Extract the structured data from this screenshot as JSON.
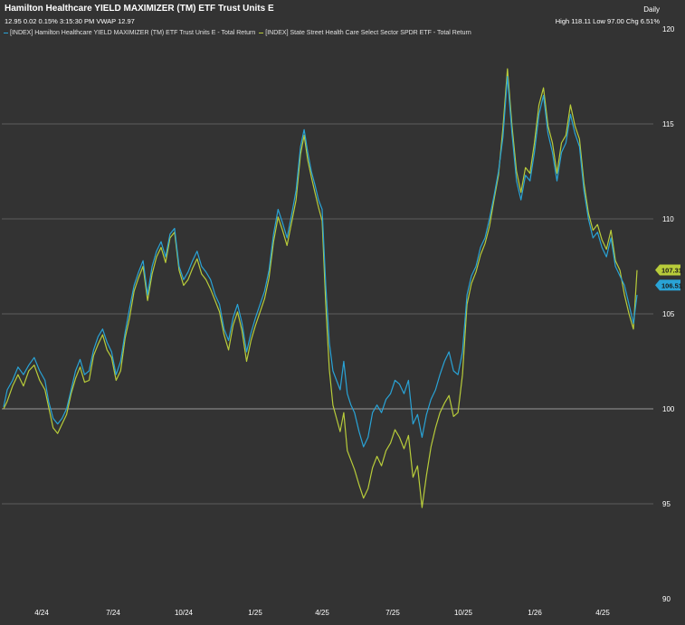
{
  "header": {
    "title": "Hamilton Healthcare YIELD MAXIMIZER (TM) ETF Trust Units E",
    "quote": "12.95 0.02 0.15% 3:15:30 PM VWAP 12.97",
    "period": "Daily",
    "hilo": "High 118.11 Low 97.00 Chg 6.51%"
  },
  "legend": [
    {
      "label": "[INDEX] Hamilton Healthcare YIELD MAXIMIZER (TM) ETF Trust Units E - Total Return",
      "color": "#29a3d6"
    },
    {
      "label": "[INDEX] State Street Health Care Select Sector SPDR ETF - Total Return",
      "color": "#b8cc3a"
    }
  ],
  "colors": {
    "background": "#333333",
    "grid": "#5e5e5e",
    "series1": "#29a3d6",
    "series2": "#b8cc3a"
  },
  "chart_data": {
    "type": "line",
    "y_ticks": [
      "120",
      "115",
      "110",
      "105",
      "100",
      "95",
      "90"
    ],
    "x_ticks": [
      "4/24",
      "7/24",
      "10/24",
      "1/25",
      "4/25",
      "7/25",
      "10/25",
      "1/26",
      "4/25"
    ],
    "ylim": [
      90,
      120
    ],
    "grid": true,
    "last_value_badges": [
      "107.31",
      "106.51"
    ],
    "series": [
      {
        "name": "[INDEX] Hamilton Healthcare YIELD MAXIMIZER (TM) ETF Trust Units E - Total Return",
        "points": [
          [
            0,
            100.1
          ],
          [
            4,
            101.0
          ],
          [
            10,
            101.5
          ],
          [
            16,
            102.2
          ],
          [
            22,
            101.8
          ],
          [
            28,
            102.3
          ],
          [
            34,
            102.7
          ],
          [
            40,
            102.0
          ],
          [
            46,
            101.5
          ],
          [
            50,
            100.4
          ],
          [
            55,
            99.5
          ],
          [
            60,
            99.2
          ],
          [
            65,
            99.5
          ],
          [
            70,
            100.0
          ],
          [
            75,
            101.0
          ],
          [
            80,
            102.0
          ],
          [
            85,
            102.6
          ],
          [
            90,
            101.8
          ],
          [
            95,
            102.0
          ],
          [
            100,
            103.1
          ],
          [
            105,
            103.8
          ],
          [
            110,
            104.2
          ],
          [
            115,
            103.5
          ],
          [
            120,
            103.0
          ],
          [
            125,
            101.8
          ],
          [
            130,
            102.5
          ],
          [
            135,
            104.0
          ],
          [
            140,
            105.3
          ],
          [
            145,
            106.5
          ],
          [
            150,
            107.2
          ],
          [
            155,
            107.8
          ],
          [
            160,
            106.0
          ],
          [
            165,
            107.5
          ],
          [
            170,
            108.3
          ],
          [
            175,
            108.8
          ],
          [
            180,
            108.0
          ],
          [
            185,
            109.2
          ],
          [
            190,
            109.5
          ],
          [
            195,
            107.5
          ],
          [
            200,
            106.8
          ],
          [
            205,
            107.2
          ],
          [
            210,
            107.8
          ],
          [
            215,
            108.3
          ],
          [
            220,
            107.5
          ],
          [
            225,
            107.2
          ],
          [
            230,
            106.8
          ],
          [
            235,
            106.0
          ],
          [
            240,
            105.5
          ],
          [
            245,
            104.2
          ],
          [
            250,
            103.6
          ],
          [
            255,
            104.8
          ],
          [
            260,
            105.5
          ],
          [
            265,
            104.5
          ],
          [
            270,
            103.0
          ],
          [
            275,
            104.0
          ],
          [
            280,
            104.8
          ],
          [
            285,
            105.5
          ],
          [
            290,
            106.2
          ],
          [
            295,
            107.3
          ],
          [
            300,
            109.2
          ],
          [
            305,
            110.5
          ],
          [
            310,
            109.8
          ],
          [
            315,
            109.0
          ],
          [
            320,
            110.2
          ],
          [
            325,
            111.5
          ],
          [
            330,
            113.8
          ],
          [
            334,
            114.7
          ],
          [
            338,
            113.5
          ],
          [
            342,
            112.5
          ],
          [
            346,
            111.8
          ],
          [
            350,
            111.0
          ],
          [
            354,
            110.5
          ],
          [
            358,
            106.5
          ],
          [
            362,
            103.5
          ],
          [
            366,
            102.0
          ],
          [
            370,
            101.5
          ],
          [
            374,
            101.0
          ],
          [
            378,
            102.5
          ],
          [
            382,
            100.8
          ],
          [
            386,
            100.2
          ],
          [
            390,
            99.8
          ],
          [
            395,
            98.8
          ],
          [
            400,
            98.0
          ],
          [
            405,
            98.5
          ],
          [
            410,
            99.8
          ],
          [
            415,
            100.2
          ],
          [
            420,
            99.8
          ],
          [
            425,
            100.5
          ],
          [
            430,
            100.8
          ],
          [
            435,
            101.5
          ],
          [
            440,
            101.3
          ],
          [
            445,
            100.8
          ],
          [
            450,
            101.5
          ],
          [
            455,
            99.2
          ],
          [
            460,
            99.7
          ],
          [
            465,
            98.5
          ],
          [
            470,
            99.7
          ],
          [
            475,
            100.5
          ],
          [
            480,
            101.0
          ],
          [
            485,
            101.8
          ],
          [
            490,
            102.5
          ],
          [
            495,
            103.0
          ],
          [
            500,
            102.0
          ],
          [
            505,
            101.8
          ],
          [
            510,
            103.0
          ],
          [
            515,
            106.0
          ],
          [
            520,
            107.0
          ],
          [
            525,
            107.5
          ],
          [
            530,
            108.5
          ],
          [
            535,
            109.0
          ],
          [
            540,
            110.0
          ],
          [
            545,
            111.2
          ],
          [
            550,
            112.5
          ],
          [
            555,
            114.3
          ],
          [
            560,
            117.5
          ],
          [
            565,
            114.5
          ],
          [
            570,
            112.0
          ],
          [
            575,
            111.0
          ],
          [
            580,
            112.3
          ],
          [
            585,
            112.0
          ],
          [
            590,
            113.5
          ],
          [
            595,
            115.5
          ],
          [
            600,
            116.5
          ],
          [
            605,
            114.5
          ],
          [
            610,
            113.5
          ],
          [
            615,
            112.0
          ],
          [
            620,
            113.5
          ],
          [
            625,
            114.0
          ],
          [
            630,
            115.5
          ],
          [
            635,
            114.5
          ],
          [
            640,
            113.8
          ],
          [
            645,
            111.5
          ],
          [
            650,
            110.0
          ],
          [
            655,
            109.0
          ],
          [
            660,
            109.3
          ],
          [
            665,
            108.5
          ],
          [
            670,
            108.0
          ],
          [
            675,
            109.0
          ],
          [
            680,
            107.5
          ],
          [
            685,
            107.0
          ],
          [
            690,
            106.5
          ],
          [
            695,
            105.5
          ],
          [
            700,
            104.5
          ],
          [
            704,
            106.0
          ]
        ]
      },
      {
        "name": "[INDEX] State Street Health Care Select Sector SPDR ETF - Total Return",
        "points": [
          [
            0,
            100.0
          ],
          [
            4,
            100.4
          ],
          [
            10,
            101.2
          ],
          [
            16,
            101.8
          ],
          [
            22,
            101.2
          ],
          [
            28,
            102.0
          ],
          [
            34,
            102.3
          ],
          [
            40,
            101.5
          ],
          [
            46,
            101.0
          ],
          [
            50,
            100.1
          ],
          [
            55,
            99.0
          ],
          [
            60,
            98.7
          ],
          [
            65,
            99.2
          ],
          [
            70,
            99.7
          ],
          [
            75,
            100.8
          ],
          [
            80,
            101.6
          ],
          [
            85,
            102.2
          ],
          [
            90,
            101.4
          ],
          [
            95,
            101.5
          ],
          [
            100,
            102.8
          ],
          [
            105,
            103.4
          ],
          [
            110,
            103.9
          ],
          [
            115,
            103.1
          ],
          [
            120,
            102.7
          ],
          [
            125,
            101.5
          ],
          [
            130,
            102.0
          ],
          [
            135,
            103.7
          ],
          [
            140,
            104.8
          ],
          [
            145,
            106.2
          ],
          [
            150,
            106.9
          ],
          [
            155,
            107.5
          ],
          [
            160,
            105.7
          ],
          [
            165,
            107.1
          ],
          [
            170,
            108.0
          ],
          [
            175,
            108.5
          ],
          [
            180,
            107.7
          ],
          [
            185,
            109.0
          ],
          [
            190,
            109.3
          ],
          [
            195,
            107.3
          ],
          [
            200,
            106.5
          ],
          [
            205,
            106.8
          ],
          [
            210,
            107.4
          ],
          [
            215,
            107.9
          ],
          [
            220,
            107.1
          ],
          [
            225,
            106.8
          ],
          [
            230,
            106.3
          ],
          [
            235,
            105.7
          ],
          [
            240,
            105.1
          ],
          [
            245,
            103.9
          ],
          [
            250,
            103.1
          ],
          [
            255,
            104.4
          ],
          [
            260,
            105.1
          ],
          [
            265,
            104.1
          ],
          [
            270,
            102.5
          ],
          [
            275,
            103.6
          ],
          [
            280,
            104.4
          ],
          [
            285,
            105.1
          ],
          [
            290,
            105.8
          ],
          [
            295,
            106.9
          ],
          [
            300,
            108.8
          ],
          [
            305,
            110.1
          ],
          [
            310,
            109.4
          ],
          [
            315,
            108.6
          ],
          [
            320,
            109.8
          ],
          [
            325,
            111.0
          ],
          [
            330,
            113.4
          ],
          [
            334,
            114.4
          ],
          [
            338,
            113.1
          ],
          [
            342,
            112.2
          ],
          [
            346,
            111.4
          ],
          [
            350,
            110.6
          ],
          [
            354,
            109.9
          ],
          [
            358,
            105.5
          ],
          [
            362,
            102.1
          ],
          [
            366,
            100.2
          ],
          [
            370,
            99.5
          ],
          [
            374,
            98.8
          ],
          [
            378,
            99.8
          ],
          [
            382,
            97.8
          ],
          [
            386,
            97.3
          ],
          [
            390,
            96.8
          ],
          [
            395,
            96.0
          ],
          [
            400,
            95.3
          ],
          [
            405,
            95.8
          ],
          [
            410,
            96.9
          ],
          [
            415,
            97.5
          ],
          [
            420,
            97.0
          ],
          [
            425,
            97.8
          ],
          [
            430,
            98.2
          ],
          [
            435,
            98.9
          ],
          [
            440,
            98.5
          ],
          [
            445,
            97.9
          ],
          [
            450,
            98.6
          ],
          [
            455,
            96.4
          ],
          [
            460,
            97.0
          ],
          [
            465,
            94.8
          ],
          [
            470,
            96.5
          ],
          [
            475,
            98.0
          ],
          [
            480,
            99.0
          ],
          [
            485,
            99.8
          ],
          [
            490,
            100.3
          ],
          [
            495,
            100.7
          ],
          [
            500,
            99.6
          ],
          [
            505,
            99.8
          ],
          [
            510,
            101.8
          ],
          [
            515,
            105.5
          ],
          [
            520,
            106.6
          ],
          [
            525,
            107.2
          ],
          [
            530,
            108.1
          ],
          [
            535,
            108.7
          ],
          [
            540,
            109.6
          ],
          [
            545,
            111.0
          ],
          [
            550,
            112.3
          ],
          [
            555,
            114.8
          ],
          [
            560,
            117.9
          ],
          [
            565,
            114.9
          ],
          [
            570,
            112.5
          ],
          [
            575,
            111.4
          ],
          [
            580,
            112.7
          ],
          [
            585,
            112.4
          ],
          [
            590,
            114.0
          ],
          [
            595,
            116.0
          ],
          [
            600,
            116.9
          ],
          [
            605,
            114.9
          ],
          [
            610,
            114.0
          ],
          [
            615,
            112.4
          ],
          [
            620,
            114.0
          ],
          [
            625,
            114.4
          ],
          [
            630,
            116.0
          ],
          [
            635,
            114.9
          ],
          [
            640,
            114.2
          ],
          [
            645,
            111.9
          ],
          [
            650,
            110.3
          ],
          [
            655,
            109.4
          ],
          [
            660,
            109.7
          ],
          [
            665,
            108.9
          ],
          [
            670,
            108.4
          ],
          [
            675,
            109.4
          ],
          [
            680,
            107.8
          ],
          [
            685,
            107.3
          ],
          [
            690,
            106.0
          ],
          [
            695,
            105.0
          ],
          [
            700,
            104.2
          ],
          [
            704,
            107.3
          ]
        ]
      }
    ]
  }
}
